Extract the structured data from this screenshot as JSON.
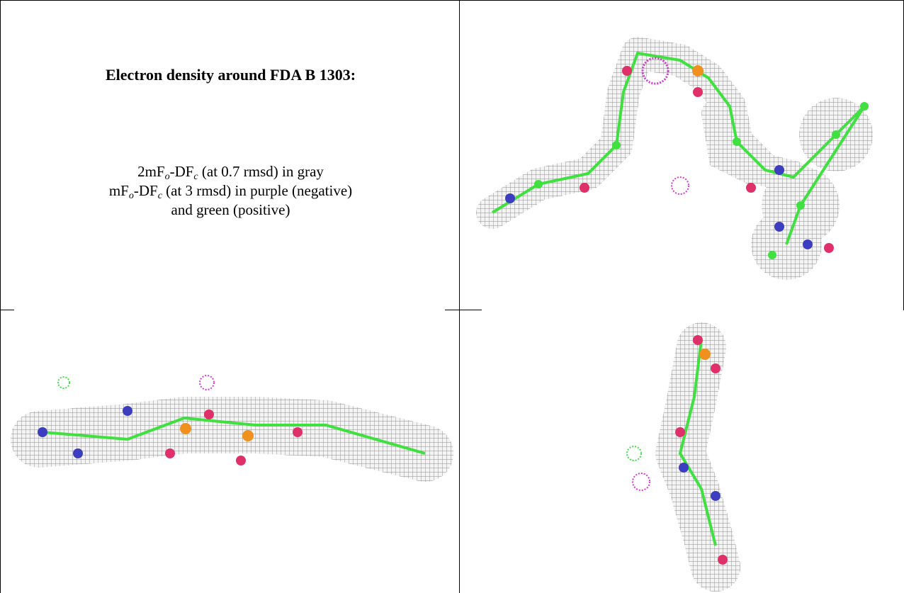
{
  "panel": {
    "title": "Electron density around FDA B 1303:",
    "legend_lines": [
      [
        "2mF",
        "o",
        "-DF",
        "c",
        " (at 0.7 rmsd) in gray"
      ],
      [
        "mF",
        "o",
        "-DF",
        "c",
        " (at 3 rmsd) in purple (negative)"
      ],
      [
        "and green (positive)"
      ]
    ]
  }
}
